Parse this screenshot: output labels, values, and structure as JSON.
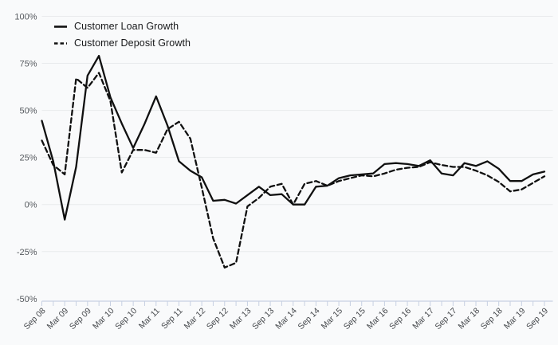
{
  "chart": {
    "legend": [
      {
        "label": "Customer Loan Growth",
        "style": "solid"
      },
      {
        "label": "Customer Deposit Growth",
        "style": "dashed"
      }
    ],
    "colors": {
      "line": "#101010",
      "grid": "#e9ebed",
      "axis": "#c7d0e2",
      "background": "#f9fafb"
    }
  },
  "chart_data": {
    "type": "line",
    "title": "",
    "xlabel": "",
    "ylabel": "",
    "ylim": [
      -50,
      100
    ],
    "ytick_step": 25,
    "ytick_labels": [
      "100%",
      "75%",
      "50%",
      "25%",
      "0%",
      "-25%",
      "-50%"
    ],
    "grid": "horizontal",
    "legend_position": "top-left",
    "x_tick_label_every": 2,
    "categories": [
      "Sep 08",
      "Dec 08",
      "Mar 09",
      "Jun 09",
      "Sep 09",
      "Dec 09",
      "Mar 10",
      "Jun 10",
      "Sep 10",
      "Dec 10",
      "Mar 11",
      "Jun 11",
      "Sep 11",
      "Dec 11",
      "Mar 12",
      "Jun 12",
      "Sep 12",
      "Dec 12",
      "Mar 13",
      "Jun 13",
      "Sep 13",
      "Dec 13",
      "Mar 14",
      "Jun 14",
      "Sep 14",
      "Dec 14",
      "Mar 15",
      "Jun 15",
      "Sep 15",
      "Dec 15",
      "Mar 16",
      "Jun 16",
      "Sep 16",
      "Dec 16",
      "Mar 17",
      "Jun 17",
      "Sep 17",
      "Dec 17",
      "Mar 18",
      "Jun 18",
      "Sep 18",
      "Dec 18",
      "Mar 19",
      "Jun 19",
      "Sep 19"
    ],
    "series": [
      {
        "name": "Customer Loan Growth",
        "dash": "solid",
        "values": [
          44.5,
          23,
          -8,
          20,
          68.5,
          79,
          57,
          43,
          30,
          43,
          57.5,
          42,
          23,
          18,
          14.5,
          2,
          2.5,
          0.5,
          5,
          9.5,
          5,
          5.5,
          0,
          0,
          9.5,
          10,
          14,
          15.5,
          16,
          16.5,
          21.5,
          22,
          21.5,
          20.5,
          23.5,
          16.5,
          15.5,
          22,
          20.5,
          23,
          19,
          12.5,
          12.5,
          16,
          17.5
        ]
      },
      {
        "name": "Customer Deposit Growth",
        "dash": "dashed",
        "values": [
          34,
          21,
          16,
          67,
          62,
          70,
          55,
          17,
          29,
          29,
          27.5,
          40,
          44,
          35,
          9,
          -18,
          -33.5,
          -31,
          -1,
          3.5,
          9.5,
          11,
          0,
          11,
          12.5,
          10,
          12.5,
          14,
          15.5,
          15,
          16.5,
          18.5,
          19.5,
          20,
          22.5,
          21,
          20,
          20,
          18,
          15.5,
          12,
          7,
          8,
          11.5,
          15
        ]
      }
    ]
  }
}
